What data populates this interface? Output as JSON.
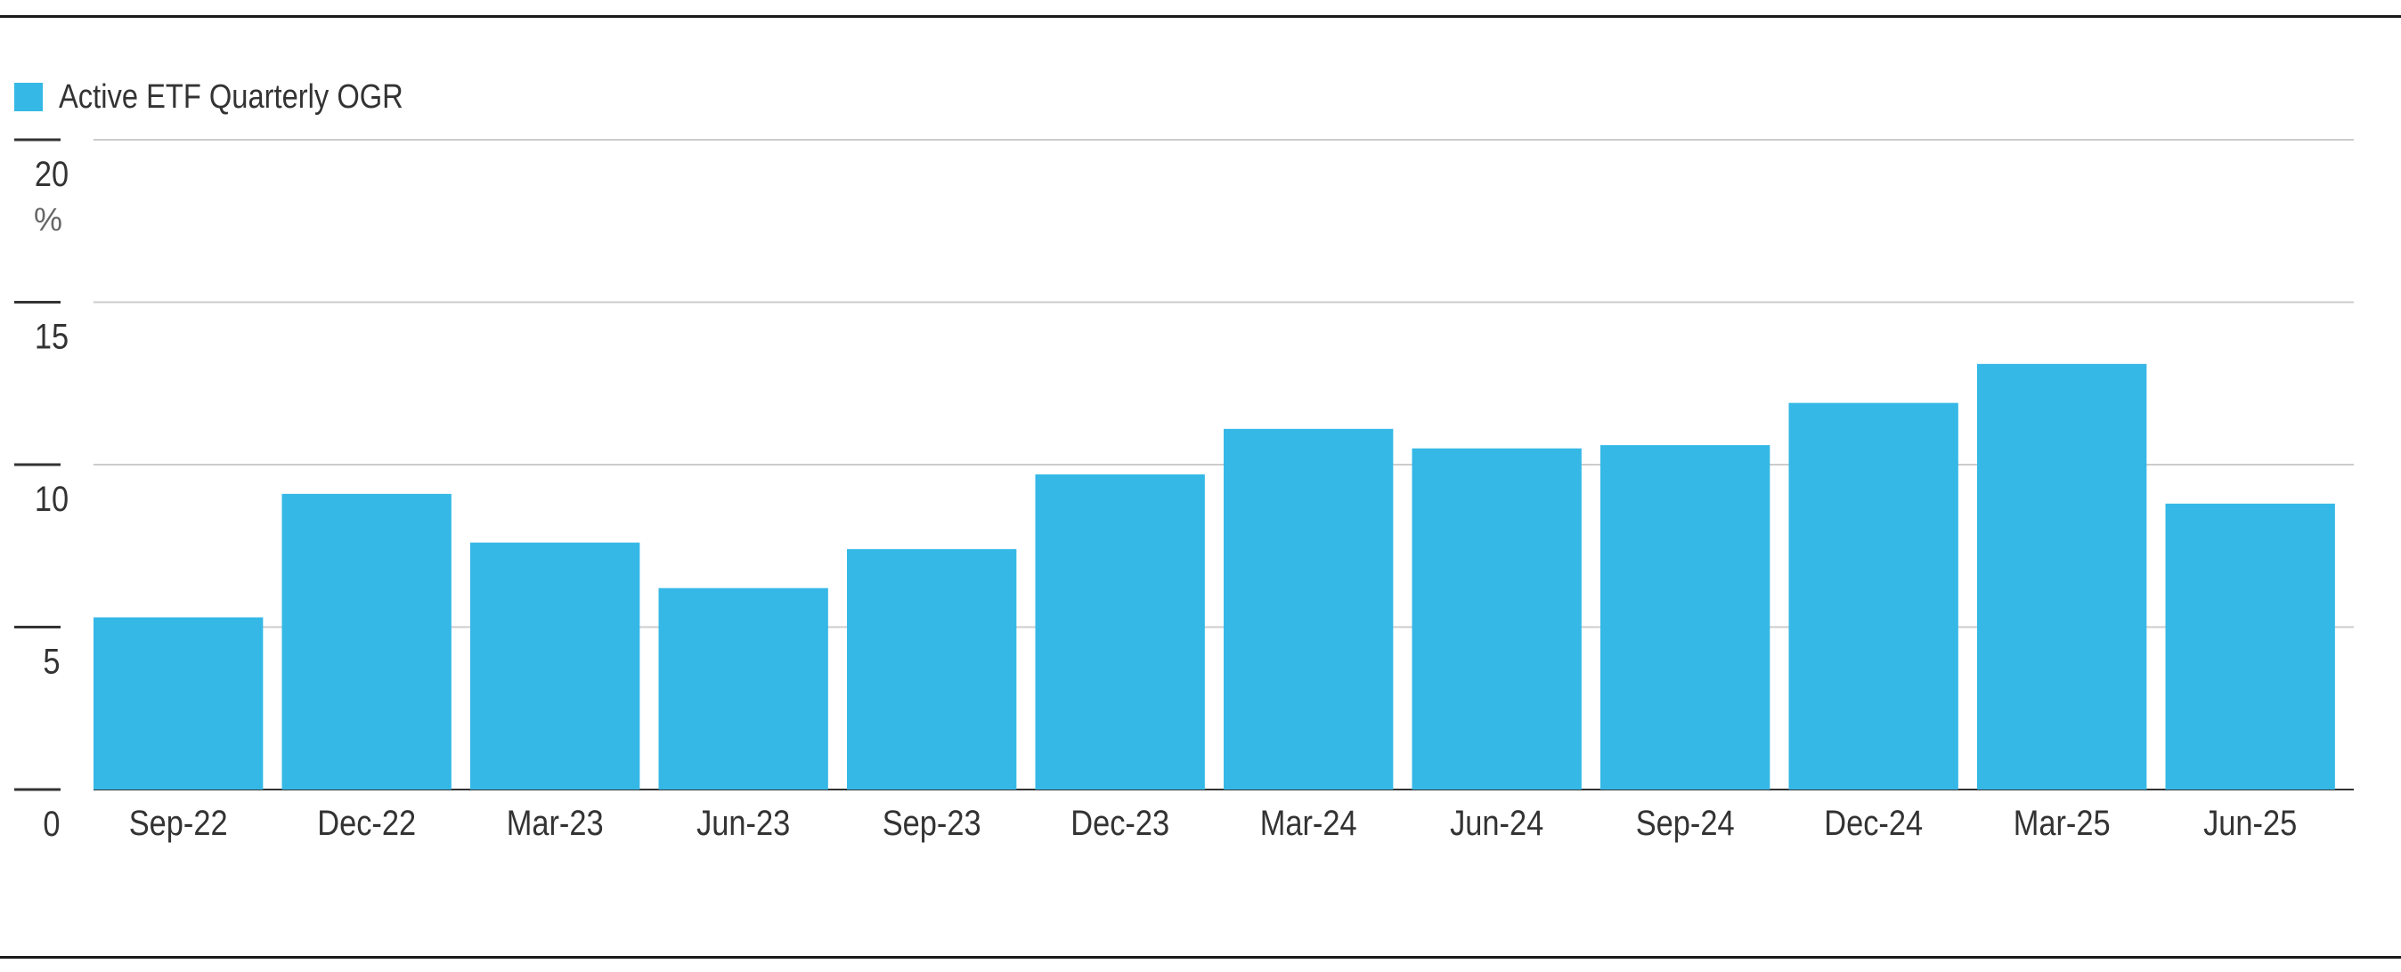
{
  "colors": {
    "bar": "#35b8e6",
    "grid": "#cccccc",
    "axis": "#333333",
    "frame": "#1a1a1a"
  },
  "legend": {
    "label": "Active ETF Quarterly OGR"
  },
  "y_axis": {
    "unit": "%"
  },
  "chart_data": {
    "type": "bar",
    "title": "",
    "xlabel": "",
    "ylabel": "",
    "ylim": [
      0,
      20
    ],
    "yticks": [
      "0",
      "5",
      "10",
      "15",
      "20"
    ],
    "ytick_values": [
      0,
      5,
      10,
      15,
      20
    ],
    "grid": true,
    "legend_position": "top-left",
    "categories": [
      "Sep-22",
      "Dec-22",
      "Mar-23",
      "Jun-23",
      "Sep-23",
      "Dec-23",
      "Mar-24",
      "Jun-24",
      "Sep-24",
      "Dec-24",
      "Mar-25",
      "Jun-25"
    ],
    "series": [
      {
        "name": "Active ETF Quarterly OGR",
        "values": [
          5.3,
          9.1,
          7.6,
          6.2,
          7.4,
          9.7,
          11.1,
          10.5,
          10.6,
          11.9,
          13.1,
          8.8
        ]
      }
    ]
  }
}
